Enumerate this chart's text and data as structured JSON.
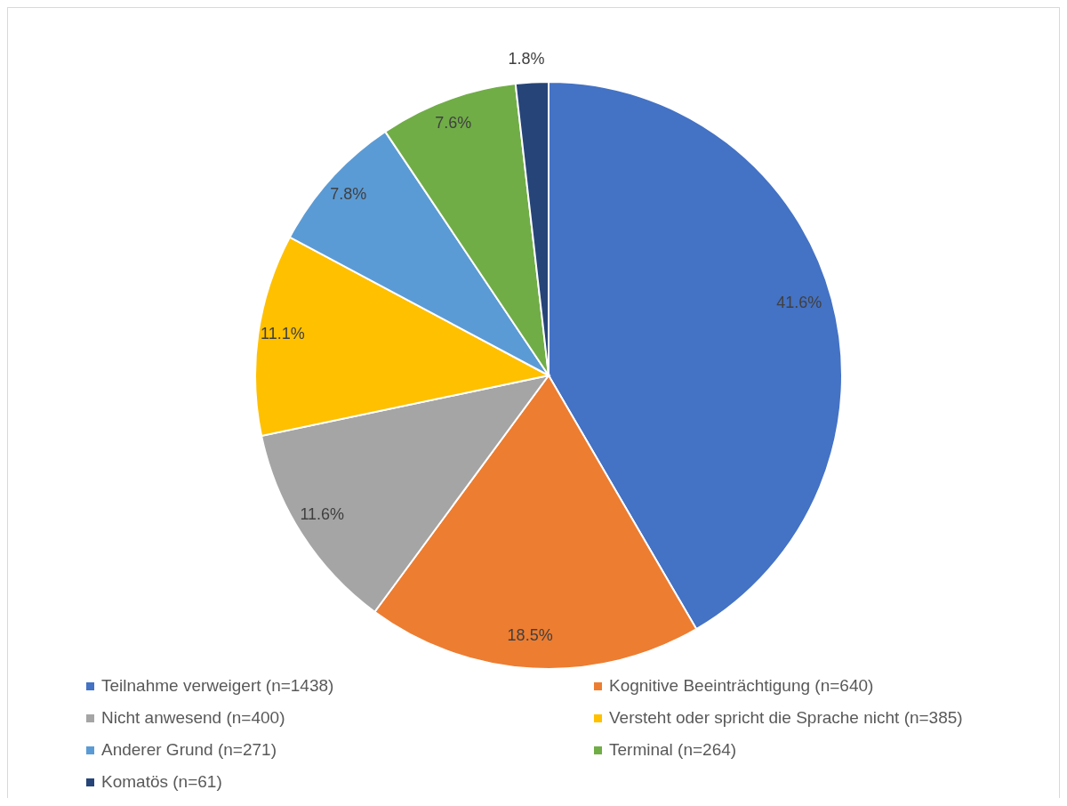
{
  "chart_data": {
    "type": "pie",
    "categories": [
      "Teilnahme verweigert (n=1438)",
      "Kognitive Beeinträchtigung (n=640)",
      "Nicht anwesend (n=400)",
      "Versteht oder spricht die Sprache nicht (n=385)",
      "Anderer Grund (n=271)",
      "Terminal (n=264)",
      "Komatös (n=61)"
    ],
    "values": [
      41.6,
      18.5,
      11.6,
      11.1,
      7.8,
      7.6,
      1.8
    ],
    "value_labels": [
      "41.6%",
      "18.5%",
      "11.6%",
      "11.1%",
      "7.8%",
      "7.6%",
      "1.8%"
    ],
    "colors": [
      "#4472c4",
      "#ed7d31",
      "#a5a5a5",
      "#ffc000",
      "#5b9bd5",
      "#70ad47",
      "#264478"
    ],
    "legend": "bottom"
  }
}
